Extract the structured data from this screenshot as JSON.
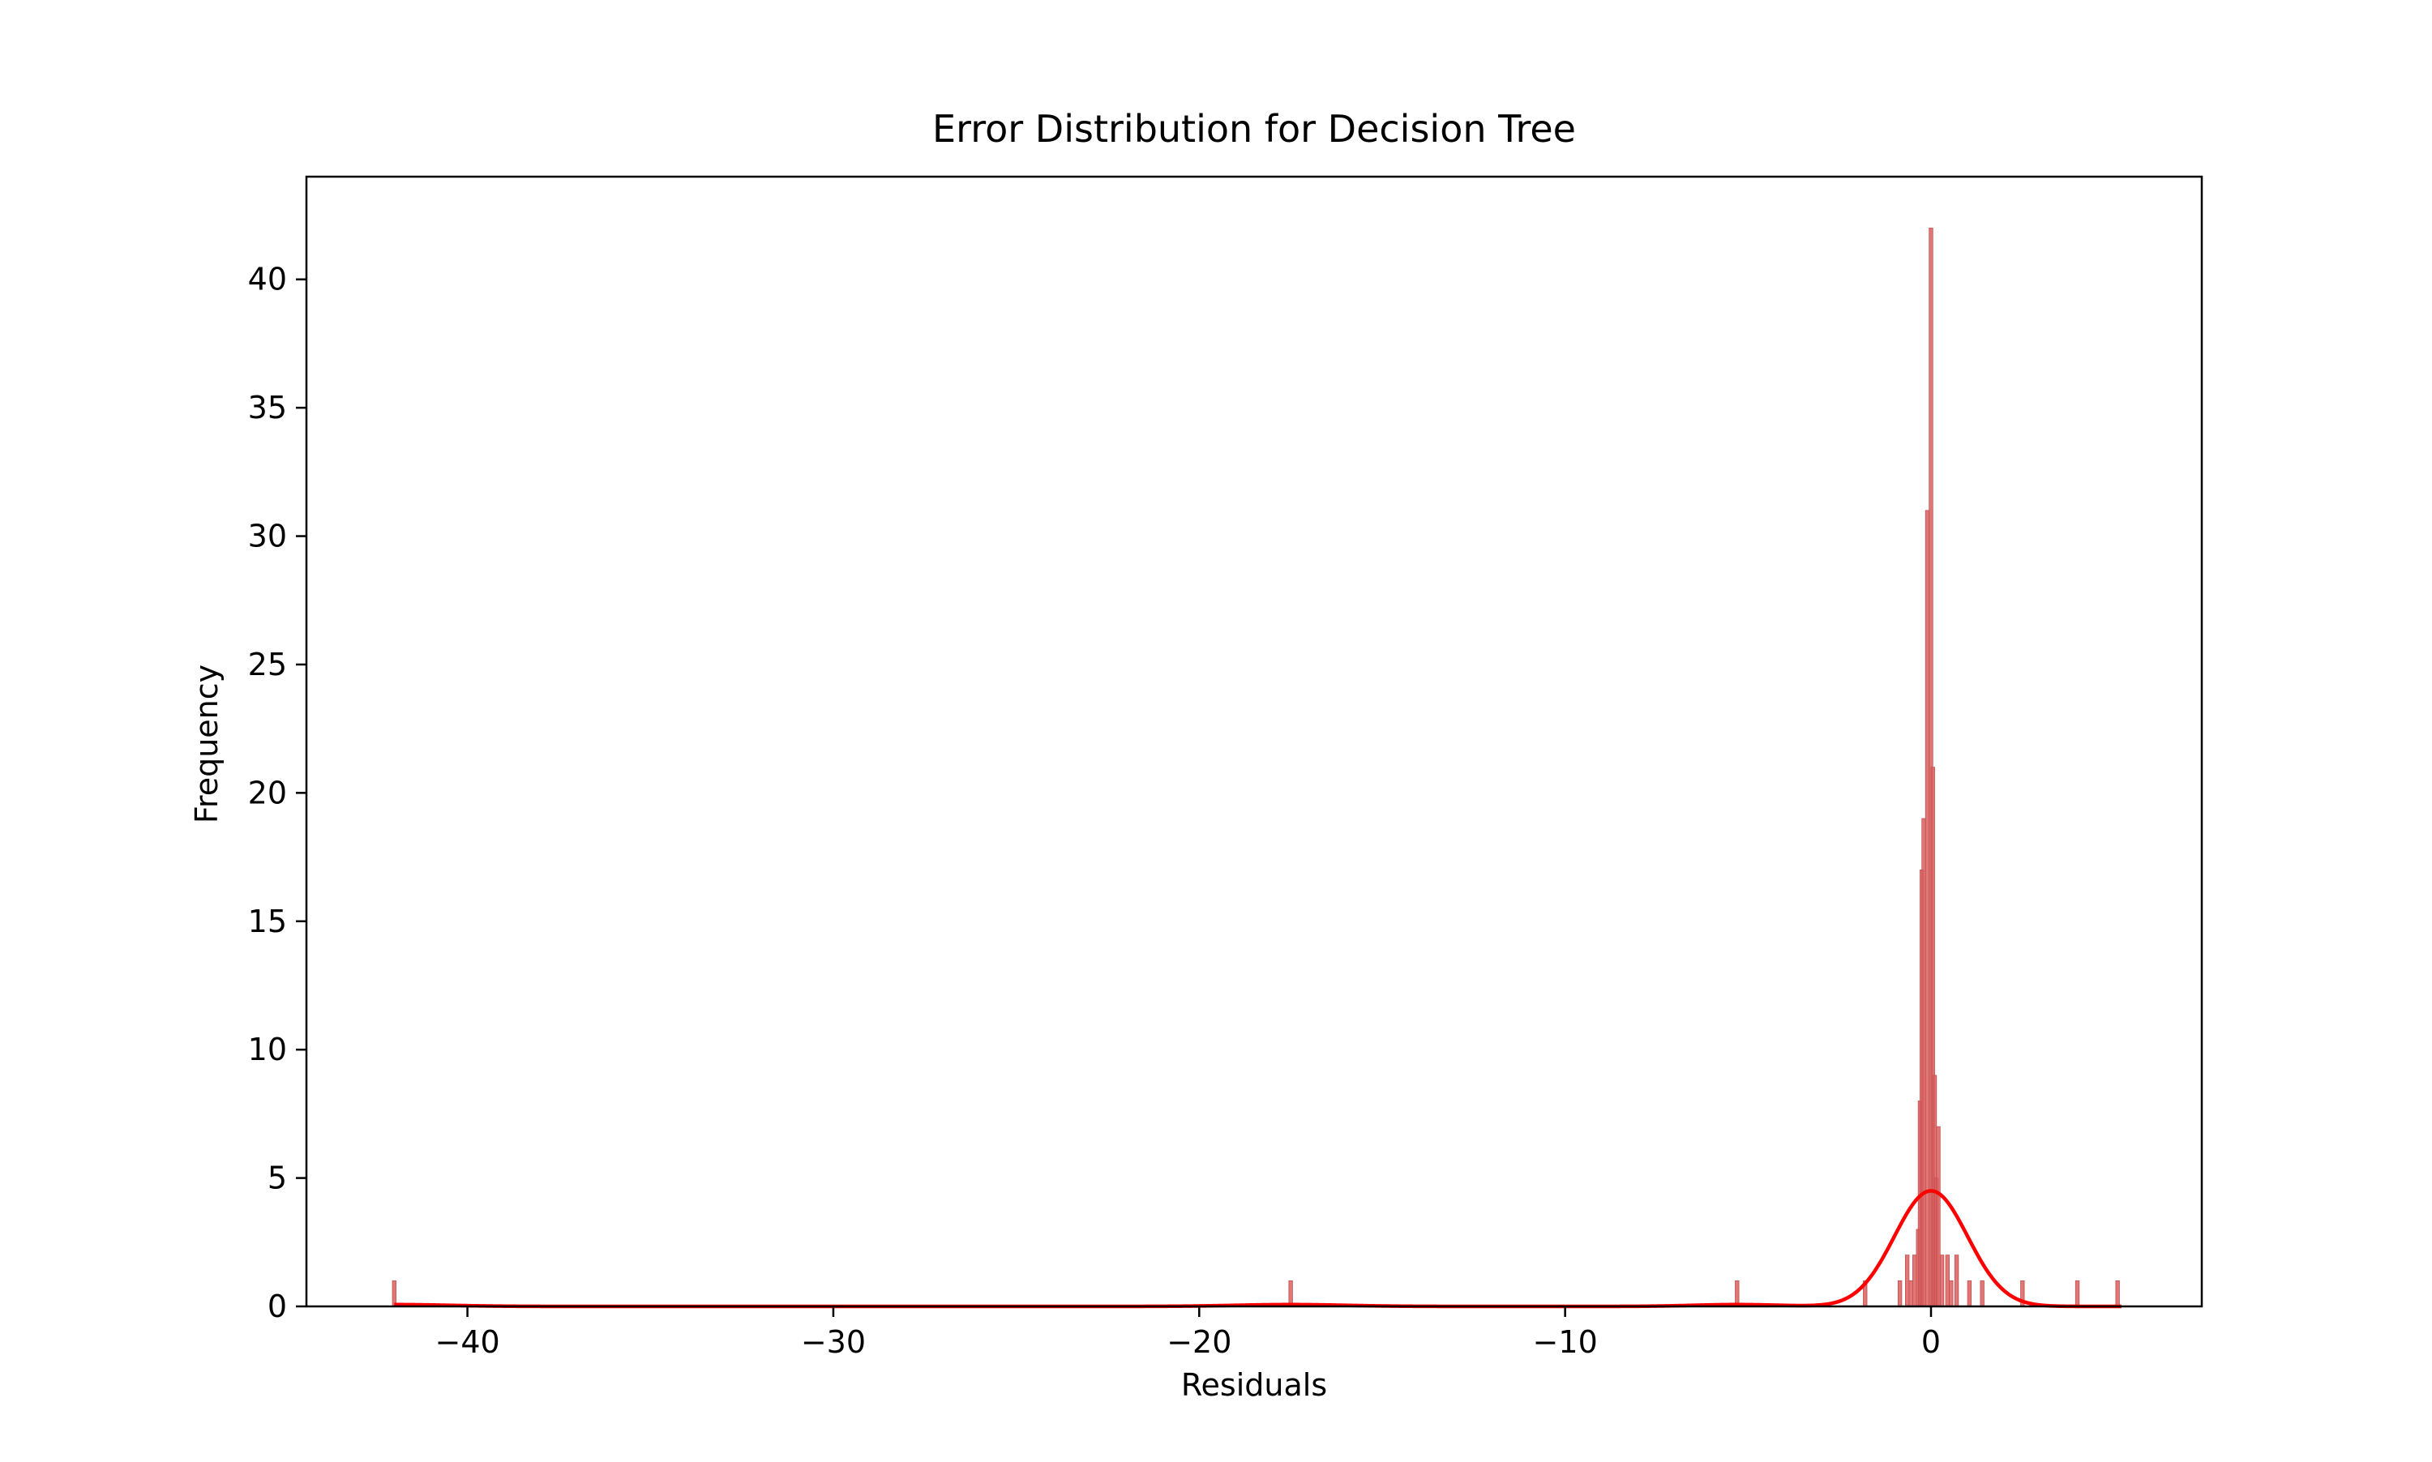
{
  "chart_data": {
    "type": "bar",
    "title": "Error Distribution for Decision Tree",
    "xlabel": "Residuals",
    "ylabel": "Frequency",
    "xlim": [
      -44.4,
      7.4
    ],
    "ylim": [
      0,
      44
    ],
    "x_ticks": [
      -40,
      -30,
      -20,
      -10,
      0
    ],
    "x_tick_labels": [
      "−40",
      "−30",
      "−20",
      "−10",
      "0"
    ],
    "y_ticks": [
      0,
      5,
      10,
      15,
      20,
      25,
      30,
      35,
      40
    ],
    "y_tick_labels": [
      "0",
      "5",
      "10",
      "15",
      "20",
      "25",
      "30",
      "35",
      "40"
    ],
    "grid": false,
    "colors": {
      "bar": "#d9605f",
      "bar_edge": "#c44e4e",
      "kde": "#ff0000",
      "axes": "#000000"
    },
    "bin_width": 0.1,
    "histogram": [
      {
        "x": -42.0,
        "count": 1
      },
      {
        "x": -17.5,
        "count": 1
      },
      {
        "x": -5.3,
        "count": 1
      },
      {
        "x": -1.8,
        "count": 1
      },
      {
        "x": -0.85,
        "count": 1
      },
      {
        "x": -0.65,
        "count": 2
      },
      {
        "x": -0.55,
        "count": 1
      },
      {
        "x": -0.45,
        "count": 2
      },
      {
        "x": -0.35,
        "count": 3
      },
      {
        "x": -0.3,
        "count": 8
      },
      {
        "x": -0.25,
        "count": 17
      },
      {
        "x": -0.2,
        "count": 19
      },
      {
        "x": -0.1,
        "count": 31
      },
      {
        "x": 0.0,
        "count": 42
      },
      {
        "x": 0.05,
        "count": 21
      },
      {
        "x": 0.1,
        "count": 9
      },
      {
        "x": 0.15,
        "count": 5
      },
      {
        "x": 0.2,
        "count": 7
      },
      {
        "x": 0.3,
        "count": 2
      },
      {
        "x": 0.45,
        "count": 2
      },
      {
        "x": 0.55,
        "count": 1
      },
      {
        "x": 0.7,
        "count": 2
      },
      {
        "x": 1.05,
        "count": 1
      },
      {
        "x": 1.4,
        "count": 1
      },
      {
        "x": 2.5,
        "count": 1
      },
      {
        "x": 4.0,
        "count": 1
      },
      {
        "x": 5.1,
        "count": 1
      }
    ],
    "kde": {
      "peak_x": 0.0,
      "peak_y": 4.5,
      "sigma": 1.0,
      "x_range": [
        -42.0,
        5.2
      ],
      "secondary_bumps": [
        {
          "x": -42.0,
          "height": 0.07,
          "sigma": 1.5
        },
        {
          "x": -17.5,
          "height": 0.07,
          "sigma": 1.5
        },
        {
          "x": -5.3,
          "height": 0.07,
          "sigma": 1.2
        }
      ]
    }
  }
}
